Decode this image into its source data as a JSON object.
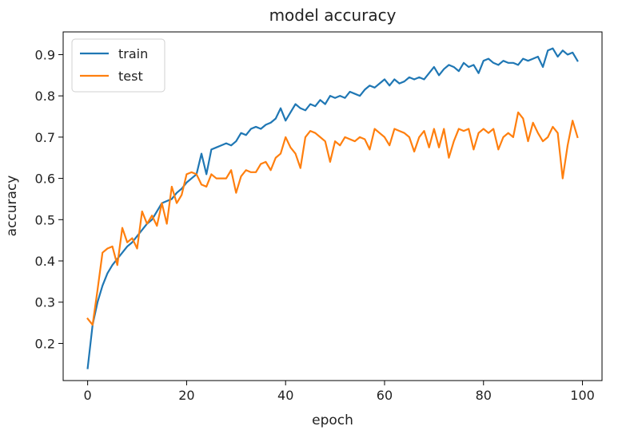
{
  "chart_data": {
    "type": "line",
    "title": "model accuracy",
    "xlabel": "epoch",
    "ylabel": "accuracy",
    "xlim": [
      -4.95,
      103.95
    ],
    "ylim": [
      0.11,
      0.955
    ],
    "xticks": [
      0,
      20,
      40,
      60,
      80,
      100
    ],
    "xtick_labels": [
      "0",
      "20",
      "40",
      "60",
      "80",
      "100"
    ],
    "yticks": [
      0.2,
      0.3,
      0.4,
      0.5,
      0.6,
      0.7,
      0.8,
      0.9
    ],
    "ytick_labels": [
      "0.2",
      "0.3",
      "0.4",
      "0.5",
      "0.6",
      "0.7",
      "0.8",
      "0.9"
    ],
    "grid": false,
    "legend_position": "top-left",
    "series": [
      {
        "name": "train",
        "color": "#1f77b4",
        "x": [
          0,
          1,
          2,
          3,
          4,
          5,
          6,
          7,
          8,
          9,
          10,
          11,
          12,
          13,
          14,
          15,
          16,
          17,
          18,
          19,
          20,
          21,
          22,
          23,
          24,
          25,
          26,
          27,
          28,
          29,
          30,
          31,
          32,
          33,
          34,
          35,
          36,
          37,
          38,
          39,
          40,
          41,
          42,
          43,
          44,
          45,
          46,
          47,
          48,
          49,
          50,
          51,
          52,
          53,
          54,
          55,
          56,
          57,
          58,
          59,
          60,
          61,
          62,
          63,
          64,
          65,
          66,
          67,
          68,
          69,
          70,
          71,
          72,
          73,
          74,
          75,
          76,
          77,
          78,
          79,
          80,
          81,
          82,
          83,
          84,
          85,
          86,
          87,
          88,
          89,
          90,
          91,
          92,
          93,
          94,
          95,
          96,
          97,
          98,
          99
        ],
        "values": [
          0.14,
          0.245,
          0.3,
          0.34,
          0.37,
          0.39,
          0.405,
          0.42,
          0.435,
          0.445,
          0.46,
          0.475,
          0.49,
          0.5,
          0.52,
          0.54,
          0.545,
          0.55,
          0.565,
          0.575,
          0.59,
          0.6,
          0.61,
          0.66,
          0.61,
          0.67,
          0.675,
          0.68,
          0.685,
          0.68,
          0.69,
          0.71,
          0.705,
          0.72,
          0.725,
          0.72,
          0.73,
          0.735,
          0.745,
          0.77,
          0.74,
          0.76,
          0.78,
          0.77,
          0.765,
          0.78,
          0.775,
          0.79,
          0.78,
          0.8,
          0.795,
          0.8,
          0.795,
          0.81,
          0.805,
          0.8,
          0.815,
          0.825,
          0.82,
          0.83,
          0.84,
          0.825,
          0.84,
          0.83,
          0.835,
          0.845,
          0.84,
          0.845,
          0.84,
          0.855,
          0.87,
          0.85,
          0.865,
          0.875,
          0.87,
          0.86,
          0.88,
          0.87,
          0.875,
          0.855,
          0.885,
          0.89,
          0.88,
          0.875,
          0.885,
          0.88,
          0.88,
          0.875,
          0.89,
          0.885,
          0.89,
          0.895,
          0.87,
          0.91,
          0.915,
          0.895,
          0.91,
          0.9,
          0.905,
          0.885
        ]
      },
      {
        "name": "test",
        "color": "#ff7f0e",
        "x": [
          0,
          1,
          2,
          3,
          4,
          5,
          6,
          7,
          8,
          9,
          10,
          11,
          12,
          13,
          14,
          15,
          16,
          17,
          18,
          19,
          20,
          21,
          22,
          23,
          24,
          25,
          26,
          27,
          28,
          29,
          30,
          31,
          32,
          33,
          34,
          35,
          36,
          37,
          38,
          39,
          40,
          41,
          42,
          43,
          44,
          45,
          46,
          47,
          48,
          49,
          50,
          51,
          52,
          53,
          54,
          55,
          56,
          57,
          58,
          59,
          60,
          61,
          62,
          63,
          64,
          65,
          66,
          67,
          68,
          69,
          70,
          71,
          72,
          73,
          74,
          75,
          76,
          77,
          78,
          79,
          80,
          81,
          82,
          83,
          84,
          85,
          86,
          87,
          88,
          89,
          90,
          91,
          92,
          93,
          94,
          95,
          96,
          97,
          98,
          99
        ],
        "values": [
          0.26,
          0.245,
          0.33,
          0.42,
          0.43,
          0.435,
          0.39,
          0.48,
          0.445,
          0.455,
          0.43,
          0.52,
          0.49,
          0.51,
          0.485,
          0.54,
          0.49,
          0.58,
          0.54,
          0.56,
          0.61,
          0.615,
          0.61,
          0.585,
          0.58,
          0.61,
          0.6,
          0.6,
          0.6,
          0.62,
          0.565,
          0.605,
          0.62,
          0.615,
          0.615,
          0.635,
          0.64,
          0.62,
          0.65,
          0.66,
          0.7,
          0.675,
          0.66,
          0.625,
          0.7,
          0.715,
          0.71,
          0.7,
          0.69,
          0.64,
          0.69,
          0.68,
          0.7,
          0.695,
          0.69,
          0.7,
          0.695,
          0.67,
          0.72,
          0.71,
          0.7,
          0.68,
          0.72,
          0.715,
          0.71,
          0.7,
          0.665,
          0.7,
          0.715,
          0.675,
          0.72,
          0.675,
          0.72,
          0.65,
          0.69,
          0.72,
          0.715,
          0.72,
          0.67,
          0.71,
          0.72,
          0.71,
          0.72,
          0.67,
          0.7,
          0.71,
          0.7,
          0.76,
          0.745,
          0.69,
          0.735,
          0.71,
          0.69,
          0.7,
          0.725,
          0.71,
          0.6,
          0.68,
          0.74,
          0.7
        ]
      }
    ]
  }
}
